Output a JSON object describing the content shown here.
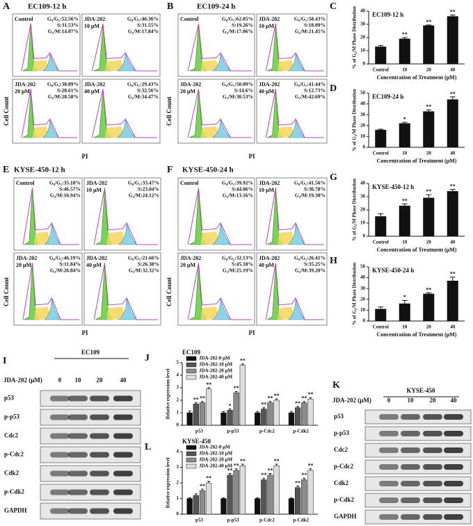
{
  "chart_data": [
    {
      "type": "bar",
      "letter": "C",
      "title": "EC109-12 h",
      "ylabel": "% of G₂/M Phase Distribution",
      "xlabel": "Concentration of Treatment (μM)",
      "categories": [
        "Control",
        "10",
        "20",
        "40"
      ],
      "values": [
        13,
        19,
        29,
        36
      ],
      "errors": [
        1,
        1,
        0.5,
        1
      ],
      "significance": [
        null,
        "**",
        "**",
        "**"
      ],
      "color": "#111111",
      "ylim": [
        0,
        40
      ],
      "yticks": [
        0,
        10,
        20,
        30,
        40
      ]
    },
    {
      "type": "bar",
      "letter": "D",
      "title": "EC109-24 h",
      "ylabel": "% of G₂/M Phase Distribution",
      "xlabel": "Concentration of Treatment (μM)",
      "categories": [
        "Control",
        "10",
        "20",
        "40"
      ],
      "values": [
        16,
        22,
        33,
        44
      ],
      "errors": [
        0.7,
        1,
        1.5,
        2.5
      ],
      "significance": [
        null,
        "*",
        "**",
        "**"
      ],
      "color": "#111111",
      "ylim": [
        0,
        50
      ],
      "yticks": [
        0,
        10,
        20,
        30,
        40,
        50
      ]
    },
    {
      "type": "bar",
      "letter": "G",
      "title": "KYSE-450-12 h",
      "ylabel": "% of G₂/M Phase Distribution",
      "xlabel": "Concentration of Treatment (μM)",
      "categories": [
        "Control",
        "10",
        "20",
        "40"
      ],
      "values": [
        15,
        23,
        29,
        34
      ],
      "errors": [
        2,
        1.5,
        2.5,
        1.5
      ],
      "significance": [
        null,
        "**",
        "**",
        "**"
      ],
      "color": "#111111",
      "ylim": [
        0,
        40
      ],
      "yticks": [
        0,
        10,
        20,
        30,
        40
      ]
    },
    {
      "type": "bar",
      "letter": "H",
      "title": "KYSE-450-24 h",
      "ylabel": "% of G₂/M Phase Distribution",
      "xlabel": "Concentration of Treatment (μM)",
      "categories": [
        "Control",
        "10",
        "20",
        "40"
      ],
      "values": [
        11,
        16,
        25,
        37
      ],
      "errors": [
        2,
        3,
        1,
        3.5
      ],
      "significance": [
        null,
        "*",
        "**",
        "**"
      ],
      "color": "#111111",
      "ylim": [
        0,
        50
      ],
      "yticks": [
        0,
        10,
        20,
        30,
        40,
        50
      ]
    },
    {
      "type": "grouped_bar",
      "letter": "J",
      "title": "EC109",
      "ylabel": "Relative expression level",
      "categories": [
        "p53",
        "p-p53",
        "p-Cdc2",
        "p-Cdk2"
      ],
      "series": [
        {
          "name": "JDA-202-0 μM",
          "color": "#111111",
          "values": [
            1,
            1,
            1,
            1
          ],
          "errors": [
            0.15,
            0.1,
            0.1,
            0.1
          ],
          "significance": [
            null,
            null,
            null,
            null
          ]
        },
        {
          "name": "JDA-202-10 μM",
          "color": "#555555",
          "values": [
            1.7,
            1.2,
            1.3,
            1.4
          ],
          "errors": [
            0.1,
            0.1,
            0.1,
            0.1
          ],
          "significance": [
            "**",
            "*",
            "**",
            "**"
          ]
        },
        {
          "name": "JDA-202-20 μM",
          "color": "#8c8c8c",
          "values": [
            1.8,
            2.6,
            1.8,
            1.8
          ],
          "errors": [
            0.1,
            0.1,
            0.1,
            0.1
          ],
          "significance": [
            "**",
            "**",
            "**",
            "**"
          ]
        },
        {
          "name": "JDA-202-40 μM",
          "color": "#dddddd",
          "values": [
            2.9,
            4.8,
            2.0,
            2.1
          ],
          "errors": [
            0.1,
            0.1,
            0.1,
            0.1
          ],
          "significance": [
            "**",
            "**",
            "**",
            "**"
          ]
        }
      ],
      "ylim": [
        0,
        5
      ],
      "yticks": [
        0,
        1,
        2,
        3,
        4,
        5
      ]
    },
    {
      "type": "grouped_bar",
      "letter": "L",
      "title": "KYSE-450",
      "ylabel": "Relative expression level",
      "categories": [
        "p53",
        "p-p53",
        "p-Cdc2",
        "p-Cdk2"
      ],
      "series": [
        {
          "name": "JDA-202-0 μM",
          "color": "#111111",
          "values": [
            1,
            1,
            1,
            1
          ],
          "errors": [
            0.05,
            0.05,
            0.05,
            0.05
          ],
          "significance": [
            null,
            null,
            null,
            null
          ]
        },
        {
          "name": "JDA-202-10 μM",
          "color": "#555555",
          "values": [
            1.2,
            2.5,
            2.2,
            1.7
          ],
          "errors": [
            0.1,
            0.1,
            0.1,
            0.1
          ],
          "significance": [
            null,
            "**",
            "**",
            "**"
          ]
        },
        {
          "name": "JDA-202-20 μM",
          "color": "#8c8c8c",
          "values": [
            1.5,
            2.8,
            2.5,
            2.2
          ],
          "errors": [
            0.1,
            0.1,
            0.1,
            0.1
          ],
          "significance": [
            "**",
            "**",
            "**",
            "**"
          ]
        },
        {
          "name": "JDA-202-40 μM",
          "color": "#dddddd",
          "values": [
            2.0,
            3.1,
            3.1,
            2.8
          ],
          "errors": [
            0.1,
            0.1,
            0.1,
            0.1
          ],
          "significance": [
            "**",
            "**",
            "**",
            "**"
          ]
        }
      ],
      "ylim": [
        0,
        4
      ],
      "yticks": [
        0,
        1,
        2,
        3,
        4
      ]
    }
  ],
  "flow_panels": [
    {
      "letter": "A",
      "title": "EC109-12 h",
      "ylabel": "Cell Count",
      "xlabel": "PI",
      "plots": [
        {
          "label": [
            "Control"
          ],
          "stats": [
            "G₀/G₁:52.56%",
            "S:31.53%",
            "G₂/M:14.07%"
          ]
        },
        {
          "label": [
            "JDA-202",
            "10 μM"
          ],
          "stats": [
            "G₀/G₁:46.36%",
            "S:31.55%",
            "G₂/M:17.84%"
          ]
        },
        {
          "label": [
            "JDA-202",
            "20 μM"
          ],
          "stats": [
            "G₀/G₁:38.89%",
            "S:28.61%",
            "G₂/M:28.58%"
          ]
        },
        {
          "label": [
            "JDA-202",
            "40 μM"
          ],
          "stats": [
            "G₀/G₁:29.43%",
            "S:32.56%",
            "G₂/M:34.47%"
          ]
        }
      ]
    },
    {
      "letter": "B",
      "title": "EC109-24 h",
      "ylabel": "Cell Count",
      "xlabel": "PI",
      "plots": [
        {
          "label": [
            "Control"
          ],
          "stats": [
            "G₀/G₁:62.05%",
            "S:19.26%",
            "G₂/M:17.06%"
          ]
        },
        {
          "label": [
            "JDA-202",
            "10 μM"
          ],
          "stats": [
            "G₀/G₁:58.43%",
            "S:18.09%",
            "G₂/M:21.45%"
          ]
        },
        {
          "label": [
            "JDA-202",
            "20 μM"
          ],
          "stats": [
            "G₀/G₁:50.09%",
            "S:14.6%",
            "G₂/M:30.53%"
          ]
        },
        {
          "label": [
            "JDA-202",
            "40 μM"
          ],
          "stats": [
            "G₀/G₁:41.44%",
            "S:12.73%",
            "G₂/M:42.69%"
          ]
        }
      ]
    },
    {
      "letter": "E",
      "title": "KYSE-450-12 h",
      "ylabel": "Cell Count",
      "xlabel": "PI",
      "plots": [
        {
          "label": [
            "Control"
          ],
          "stats": [
            "G₀/G₁:35.18%",
            "S:46.57%",
            "G₂/M:16.94%"
          ]
        },
        {
          "label": [
            "JDA-202",
            "10 μM"
          ],
          "stats": [
            "G₀/G₁:33.47%",
            "S:23.04%",
            "G₂/M:24.12%"
          ]
        },
        {
          "label": [
            "JDA-202",
            "20 μM"
          ],
          "stats": [
            "G₀/G₁:46.19%",
            "S:11.84%",
            "G₂/M:26.84%"
          ]
        },
        {
          "label": [
            "JDA-202",
            "40 μM"
          ],
          "stats": [
            "G₀/G₁:21.66%",
            "S:26.38%",
            "G₂/M:32.32%"
          ]
        }
      ]
    },
    {
      "letter": "F",
      "title": "KYSE-450-24 h",
      "ylabel": "Cell Count",
      "xlabel": "PI",
      "plots": [
        {
          "label": [
            "Control"
          ],
          "stats": [
            "G₀/G₁:39.92%",
            "S:44.06%",
            "G₂/M:13.16%"
          ]
        },
        {
          "label": [
            "JDA-202",
            "10 μM"
          ],
          "stats": [
            "G₀/G₁:41.56%",
            "S:36.78%",
            "G₂/M:19.38%"
          ]
        },
        {
          "label": [
            "JDA-202",
            "20 μM"
          ],
          "stats": [
            "G₀/G₁:32.13%",
            "S:45.18%",
            "G₂/M:25.19%"
          ]
        },
        {
          "label": [
            "JDA-202",
            "40 μM"
          ],
          "stats": [
            "G₀/G₁:26.41%",
            "S:35.25%",
            "G₂/M:39.20%"
          ]
        }
      ]
    }
  ],
  "blots": [
    {
      "letter": "I",
      "cell_line": "EC109",
      "treatment": "JDA-202 (μM)",
      "doses": [
        "0",
        "10",
        "20",
        "40"
      ],
      "proteins": [
        "p53",
        "p-p53",
        "Cdc2",
        "p-Cdc2",
        "Cdk2",
        "p-Cdk2",
        "GAPDH"
      ]
    },
    {
      "letter": "K",
      "cell_line": "KYSE-450",
      "treatment": "JDA-202 (μM)",
      "doses": [
        "0",
        "10",
        "20",
        "40"
      ],
      "proteins": [
        "p53",
        "p-p53",
        "Cdc2",
        "p-Cdc2",
        "Cdk2",
        "p-Cdk2",
        "GAPDH"
      ]
    }
  ]
}
